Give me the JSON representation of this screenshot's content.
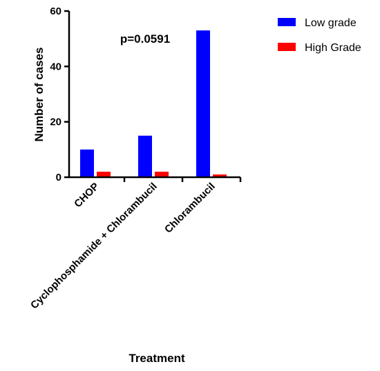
{
  "chart_data": {
    "type": "bar",
    "categories": [
      "CHOP",
      "Cyclophosphamide + Chlorambucil",
      "Chlorambucil"
    ],
    "series": [
      {
        "name": "Low grade",
        "values": [
          10,
          15,
          53
        ],
        "color": "#0000ff"
      },
      {
        "name": "High Grade",
        "values": [
          2,
          2,
          1
        ],
        "color": "#ff0000"
      }
    ],
    "xlabel": "Treatment",
    "ylabel": "Number of cases",
    "ylim": [
      0,
      60
    ],
    "yticks": [
      0,
      20,
      40,
      60
    ],
    "annotation": "p=0.0591",
    "legend_position": "top-right",
    "grid": false
  }
}
